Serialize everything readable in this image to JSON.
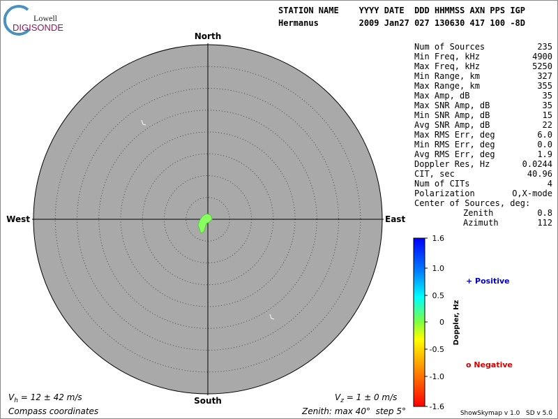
{
  "logo": {
    "top": "Lowell",
    "bottom": "DIGISONDE"
  },
  "header": {
    "line1": "STATION NAME    YYYY DATE  DDD HHMMSS AXN PPS IGP",
    "line2": "Hermanus        2009 Jan27 027 130630 417 100 -8D"
  },
  "compass": {
    "north": "North",
    "south": "South",
    "east": "East",
    "west": "West"
  },
  "stats": [
    [
      "Num of Sources",
      "235"
    ],
    [
      "Min Freq, kHz",
      "4900"
    ],
    [
      "Max Freq, kHz",
      "5250"
    ],
    [
      "Min Range, km",
      "327"
    ],
    [
      "Max Range, km",
      "355"
    ],
    [
      "Max Amp, dB",
      "35"
    ],
    [
      "Max SNR Amp, dB",
      "35"
    ],
    [
      "Min SNR Amp, dB",
      "15"
    ],
    [
      "Avg SNR Amp, dB",
      "22"
    ],
    [
      "Max RMS Err, deg",
      "6.0"
    ],
    [
      "Min RMS Err, deg",
      "0.0"
    ],
    [
      "Avg RMS Err, deg",
      "1.9"
    ],
    [
      "Doppler Res, Hz",
      "0.0244"
    ],
    [
      "CIT, sec",
      "40.96"
    ],
    [
      "Num of CITs",
      "4"
    ],
    [
      "Polarization",
      "O,X-mode"
    ]
  ],
  "center": {
    "title": "Center of Sources, deg:",
    "zenith_label": "Zenith",
    "zenith": "0.8",
    "azimuth_label": "Azimuth",
    "azimuth": "112"
  },
  "colorbar": {
    "label": "Doppler, Hz",
    "ticks": [
      "1.6",
      "1.0",
      "0.5",
      "0",
      "-0.5",
      "-1.0",
      "-1.6"
    ]
  },
  "legend": {
    "positive": "+ Positive",
    "negative": "o Negative"
  },
  "footer": {
    "vh_symbol": "V",
    "vh_sub": "h",
    "vh_text": " = 12 ± 42 m/s",
    "vz_symbol": "V",
    "vz_sub": "z",
    "vz_text": " = 1 ± 0 m/s",
    "coords": "Compass coordinates",
    "zenith": "Zenith: max 40°  step 5°",
    "version": "ShowSkymap v 1.0   SD v 5.0"
  }
}
